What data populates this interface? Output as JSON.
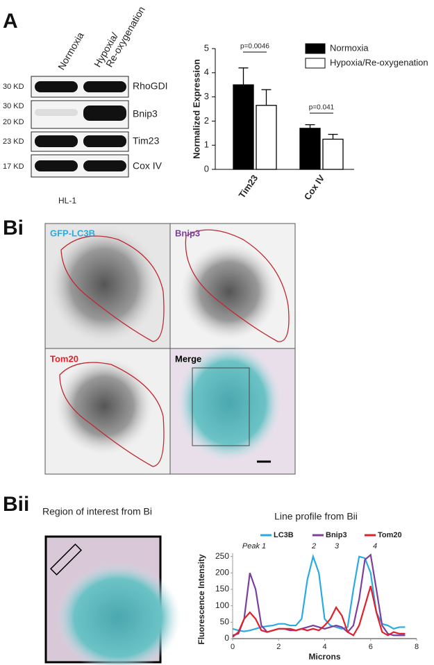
{
  "panel_labels": [
    "A",
    "Bi",
    "Bii"
  ],
  "blot": {
    "lanes": [
      [
        "Normoxia"
      ],
      [
        "Hypoxia/",
        "Re-oxygenation"
      ]
    ],
    "markers": [
      "30 KD",
      "30 KD",
      "20 KD",
      "23 KD",
      "17 KD"
    ],
    "proteins": [
      "RhoGDI",
      "Bnip3",
      "Tim23",
      "Cox IV"
    ],
    "cell_line": "HL-1"
  },
  "image_panels": [
    "GFP-LC3B",
    "Bnip3",
    "Tom20",
    "Merge"
  ],
  "roi_title": "Region of interest from Bi",
  "chart_data": [
    {
      "type": "bar",
      "ylabel": "Normalized Expression",
      "categories": [
        "Tim23",
        "Cox IV"
      ],
      "series": [
        {
          "name": "Normoxia",
          "color": "#000000",
          "values": [
            3.5,
            1.7
          ],
          "errors": [
            0.7,
            0.15
          ]
        },
        {
          "name": "Hypoxia/Re-oxygenation",
          "color": "#ffffff",
          "values": [
            2.65,
            1.25
          ],
          "errors": [
            0.65,
            0.2
          ]
        }
      ],
      "ylim": [
        0,
        5
      ],
      "yticks": [
        0,
        1,
        2,
        3,
        4,
        5
      ],
      "annotations": [
        "p=0.0046",
        "p=0.041"
      ]
    },
    {
      "type": "line",
      "title": "Line profile from Bii",
      "xlabel": "Microns",
      "ylabel": "Fluorescence Intensity",
      "x": [
        0,
        0.25,
        0.5,
        0.75,
        1,
        1.25,
        1.5,
        1.75,
        2,
        2.25,
        2.5,
        2.75,
        3,
        3.25,
        3.5,
        3.75,
        4,
        4.25,
        4.5,
        4.75,
        5,
        5.25,
        5.5,
        5.75,
        6,
        6.25,
        6.5,
        6.75,
        7,
        7.25,
        7.5
      ],
      "series": [
        {
          "name": "LC3B",
          "color": "#29aae1",
          "values": [
            30,
            25,
            22,
            25,
            30,
            35,
            38,
            40,
            45,
            45,
            40,
            40,
            60,
            180,
            250,
            200,
            60,
            40,
            35,
            30,
            35,
            150,
            250,
            245,
            200,
            80,
            45,
            40,
            30,
            35,
            35
          ]
        },
        {
          "name": "Bnip3",
          "color": "#7b3f9e",
          "values": [
            10,
            15,
            60,
            200,
            150,
            40,
            20,
            25,
            30,
            30,
            25,
            25,
            30,
            35,
            40,
            35,
            30,
            35,
            40,
            35,
            20,
            40,
            120,
            240,
            255,
            150,
            40,
            15,
            10,
            10,
            10
          ]
        },
        {
          "name": "Tom20",
          "color": "#e0202a",
          "values": [
            5,
            20,
            60,
            80,
            60,
            25,
            20,
            25,
            30,
            30,
            30,
            25,
            30,
            25,
            30,
            25,
            40,
            60,
            95,
            70,
            20,
            10,
            40,
            100,
            160,
            80,
            20,
            10,
            20,
            15,
            15
          ]
        }
      ],
      "xlim": [
        0,
        8
      ],
      "xticks": [
        0,
        2,
        4,
        6,
        8
      ],
      "ylim": [
        0,
        260
      ],
      "yticks": [
        0,
        50,
        100,
        150,
        200,
        250
      ],
      "annotations": [
        "Peak 1",
        "2",
        "3",
        "4"
      ]
    }
  ]
}
